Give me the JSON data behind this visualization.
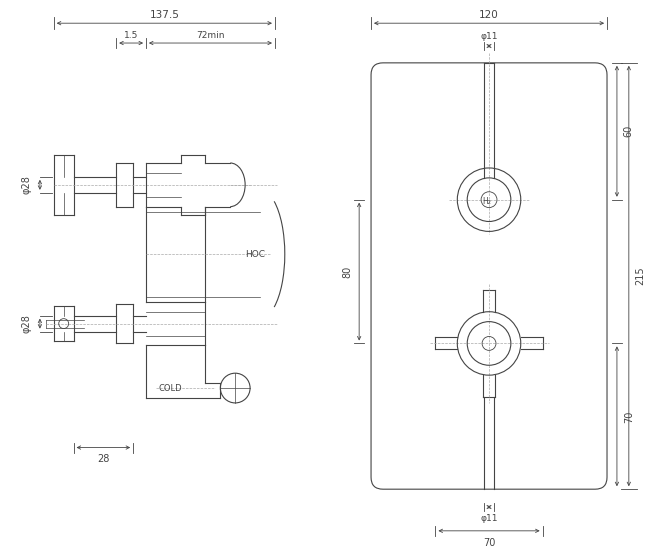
{
  "bg_color": "#ffffff",
  "line_color": "#444444",
  "dim_color": "#444444",
  "text_color": "#333333",
  "fig_width": 6.47,
  "fig_height": 5.5,
  "dpi": 100,
  "lw": 0.8,
  "lw_thin": 0.5,
  "lw_dim": 0.6,
  "annotations": {
    "dim_137_5": "137.5",
    "dim_1_5": "1.5",
    "dim_72min": "72min",
    "dim_phi28_top": "φ28",
    "dim_phi28_bot": "φ28",
    "dim_28": "28",
    "dim_hoc": "HOC",
    "dim_cold": "COLD",
    "dim_120": "120",
    "dim_215": "215",
    "dim_80": "80",
    "dim_60": "60",
    "dim_70_right": "70",
    "dim_phi11_top": "φ11",
    "dim_phi11_bot": "φ11",
    "dim_70_bot": "70"
  }
}
